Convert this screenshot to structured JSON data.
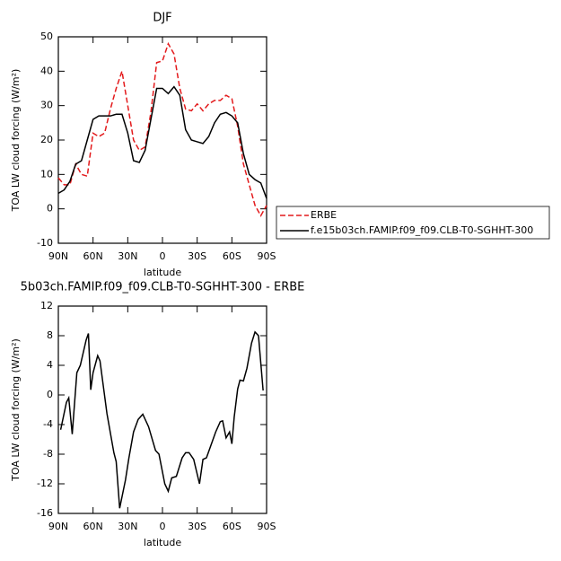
{
  "chart_data": [
    {
      "type": "line",
      "title": "DJF",
      "xlabel": "latitude",
      "ylabel": "TOA LW cloud forcing (W/m²)",
      "x": [
        90,
        85,
        80,
        75,
        70,
        65,
        60,
        55,
        50,
        45,
        40,
        35,
        30,
        25,
        20,
        15,
        10,
        5,
        0,
        -5,
        -10,
        -15,
        -20,
        -25,
        -30,
        -35,
        -40,
        -45,
        -50,
        -55,
        -60,
        -65,
        -70,
        -75,
        -80,
        -85,
        -90
      ],
      "series": [
        {
          "name": "ERBE",
          "color": "#e31a1c",
          "dash": true,
          "values": [
            9,
            7,
            7,
            13,
            10,
            9.5,
            22,
            21,
            22,
            29,
            35,
            40,
            30,
            20,
            17,
            18,
            28,
            42.5,
            43,
            48,
            45,
            35,
            29,
            28.5,
            30.5,
            28.5,
            30.5,
            31.5,
            31.5,
            33,
            32,
            24,
            13,
            7,
            1,
            -2,
            1
          ]
        },
        {
          "name": "f.e15b03ch.FAMIP.f09_f09.CLB-T0-SGHHT-300",
          "color": "#000000",
          "dash": false,
          "values": [
            4.5,
            5.5,
            8,
            13,
            14,
            20,
            26,
            27,
            27,
            27,
            27.5,
            27.5,
            22,
            14,
            13.5,
            17,
            26,
            35,
            35,
            33.5,
            35.5,
            33,
            23,
            20,
            19.5,
            19,
            21,
            25,
            27.5,
            28,
            27,
            25,
            16,
            10,
            8.5,
            7.5,
            3
          ]
        }
      ],
      "xlim": [
        90,
        -90
      ],
      "xticks": [
        {
          "value": 90,
          "label": "90N"
        },
        {
          "value": 60,
          "label": "60N"
        },
        {
          "value": 30,
          "label": "30N"
        },
        0,
        {
          "value": -30,
          "label": "30S"
        },
        {
          "value": -60,
          "label": "60S"
        },
        {
          "value": -90,
          "label": "90S"
        }
      ],
      "ylim": [
        -10,
        50
      ],
      "yticks": [
        -10,
        0,
        10,
        20,
        30,
        40,
        50
      ]
    },
    {
      "type": "line",
      "title": "5b03ch.FAMIP.f09_f09.CLB-T0-SGHHT-300  -  ERBE",
      "xlabel": "latitude",
      "ylabel": "TOA LW cloud forcing (W/m²)",
      "x": [
        88,
        83,
        81,
        78,
        74,
        71,
        66,
        64,
        62,
        60,
        56,
        54,
        48,
        42,
        40,
        37,
        32,
        29,
        25,
        21,
        17,
        12,
        6,
        3,
        -2,
        -5,
        -8,
        -12,
        -17,
        -20,
        -23,
        -27,
        -32,
        -35,
        -38,
        -46,
        -50,
        -52,
        -55,
        -58,
        -60,
        -62,
        -65,
        -67,
        -70,
        -73,
        -77,
        -80,
        -83,
        -87
      ],
      "series": [
        {
          "color": "#000000",
          "dash": false,
          "values": [
            -4.7,
            -1,
            -0.4,
            -5.3,
            3,
            4,
            7.4,
            8.3,
            0.7,
            3,
            5.3,
            4.6,
            -2.5,
            -7.8,
            -9,
            -15.3,
            -11.5,
            -8.5,
            -5,
            -3.3,
            -2.6,
            -4.3,
            -7.5,
            -8,
            -12,
            -13,
            -11.2,
            -11,
            -8.5,
            -7.8,
            -7.8,
            -8.7,
            -12,
            -8.7,
            -8.5,
            -5,
            -3.6,
            -3.5,
            -5.8,
            -5,
            -6.6,
            -3,
            0.8,
            2,
            1.9,
            3.6,
            7,
            8.5,
            8,
            0.6
          ]
        }
      ],
      "xlim": [
        90,
        -90
      ],
      "xticks": [
        {
          "value": 90,
          "label": "90N"
        },
        {
          "value": 60,
          "label": "60N"
        },
        {
          "value": 30,
          "label": "30N"
        },
        0,
        {
          "value": -30,
          "label": "30S"
        },
        {
          "value": -60,
          "label": "60S"
        },
        {
          "value": -90,
          "label": "90S"
        }
      ],
      "ylim": [
        -16,
        12
      ],
      "yticks": [
        -16,
        -12,
        -8,
        -4,
        0,
        4,
        8,
        12
      ]
    }
  ]
}
